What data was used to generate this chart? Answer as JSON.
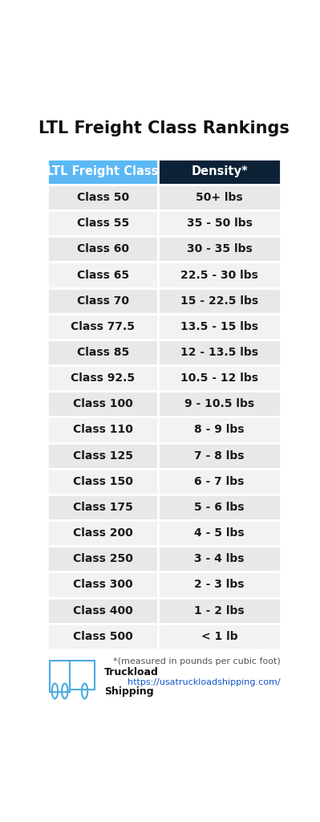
{
  "title": "LTL Freight Class Rankings",
  "header_left": "LTL Freight Class",
  "header_right": "Density*",
  "header_left_bg": "#5BB8F5",
  "header_right_bg": "#0D2137",
  "header_text_color": "#FFFFFF",
  "row_bg_odd": "#E8E8E8",
  "row_bg_even": "#F2F2F2",
  "row_text_color": "#1A1A1A",
  "classes": [
    "Class 50",
    "Class 55",
    "Class 60",
    "Class 65",
    "Class 70",
    "Class 77.5",
    "Class 85",
    "Class 92.5",
    "Class 100",
    "Class 110",
    "Class 125",
    "Class 150",
    "Class 175",
    "Class 200",
    "Class 250",
    "Class 300",
    "Class 400",
    "Class 500"
  ],
  "densities": [
    "50+ lbs",
    "35 - 50 lbs",
    "30 - 35 lbs",
    "22.5 - 30 lbs",
    "15 - 22.5 lbs",
    "13.5 - 15 lbs",
    "12 - 13.5 lbs",
    "10.5 - 12 lbs",
    "9 - 10.5 lbs",
    "8 - 9 lbs",
    "7 - 8 lbs",
    "6 - 7 lbs",
    "5 - 6 lbs",
    "4 - 5 lbs",
    "3 - 4 lbs",
    "2 - 3 lbs",
    "1 - 2 lbs",
    "< 1 lb"
  ],
  "footnote": "*(measured in pounds per cubic foot)",
  "url": "https://usatruckloadshipping.com/",
  "logo_line1": "Truckload",
  "logo_line2": "Shipping",
  "title_fontsize": 15,
  "header_fontsize": 10.5,
  "row_fontsize": 10,
  "footnote_fontsize": 8,
  "url_fontsize": 8,
  "bg_color": "#FFFFFF"
}
